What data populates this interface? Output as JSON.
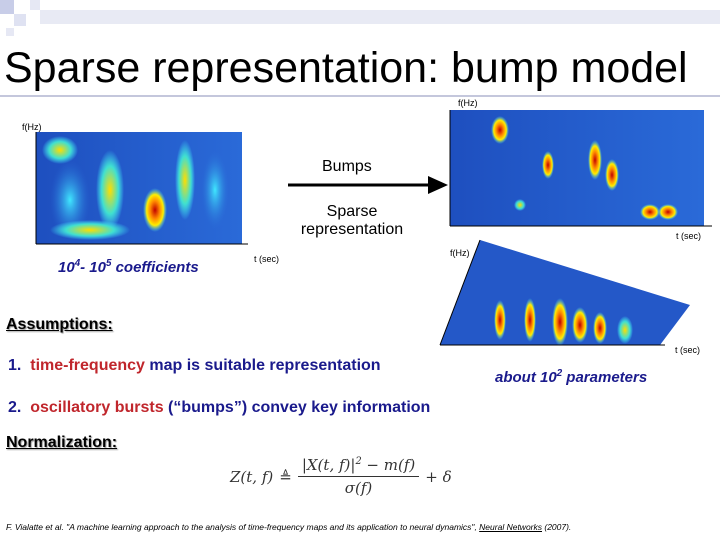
{
  "header": {
    "title": "Sparse representation: bump model"
  },
  "left_map": {
    "y_label": "f(Hz)",
    "x_label": "t (sec)",
    "caption": {
      "base1": "10",
      "exp1": "4",
      "base2": "- 10",
      "exp2": "5",
      "text": " coefficients"
    }
  },
  "arrow": {
    "top_label": "Bumps",
    "bottom_label": "Sparse representation"
  },
  "right_map": {
    "y_label": "f(Hz)",
    "x_label": "t (sec)"
  },
  "map_3d": {
    "y_label": "f(Hz)",
    "x_label": "t (sec)",
    "caption": {
      "before": "about ",
      "base": "10",
      "exp": "2",
      "after": " parameters"
    }
  },
  "assumptions": {
    "heading": "Assumptions:",
    "items": [
      {
        "number": "1.",
        "highlight": "time-frequency",
        "text": " map is suitable representation"
      },
      {
        "number": "2.",
        "highlight": "oscillatory bursts",
        "text": " (“bumps”) convey key information"
      }
    ]
  },
  "normalization": {
    "heading": "Normalization:",
    "formula": {
      "lhs": "Z(t, f)",
      "op": "≜",
      "num_abs": "|X(t, f)|",
      "num_exp": "2",
      "num_rest": " − m(f)",
      "den": "σ(f)",
      "tail": "+ δ"
    }
  },
  "citation": {
    "authors": "F. Vialatte et al. ",
    "title": "\"A machine learning approach to the analysis of time-frequency maps and its application to neural dynamics\", ",
    "journal": "Neural Networks",
    "year": " (2007)."
  }
}
